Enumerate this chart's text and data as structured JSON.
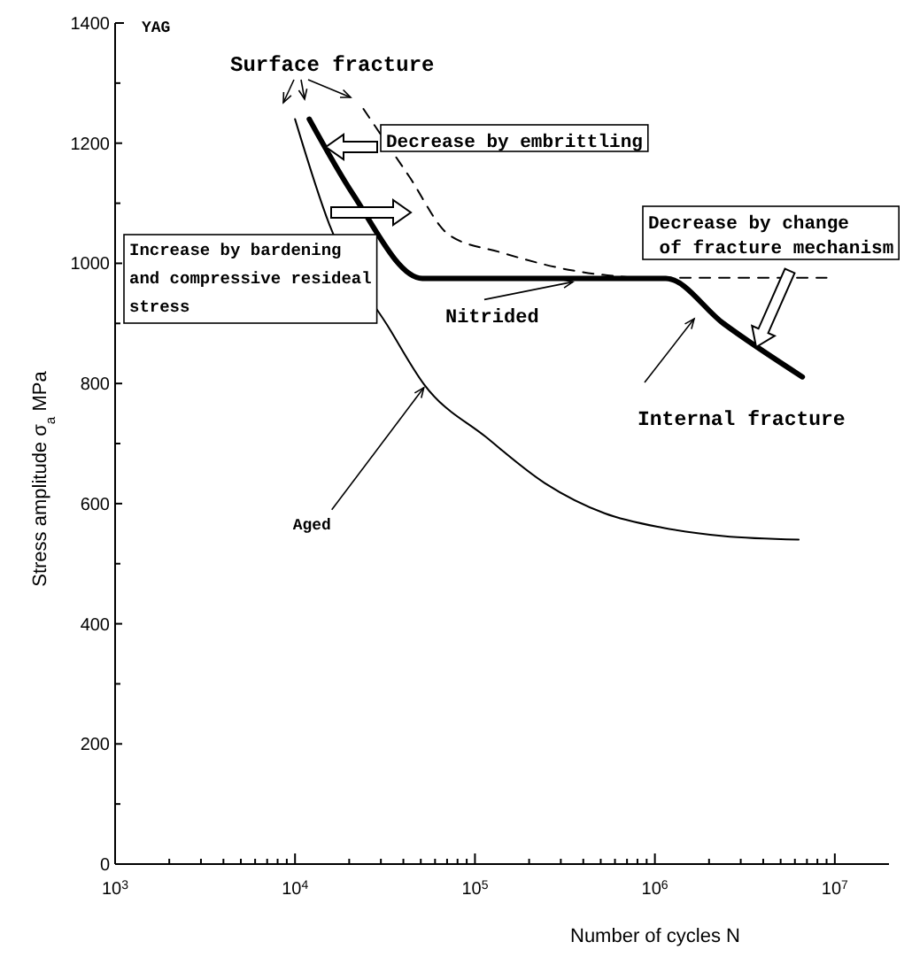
{
  "chart_data": {
    "type": "line",
    "xlabel": "Number of cycles  N",
    "ylabel": "Stress amplitude σ$_{a}$  MPa",
    "log": "x",
    "xlim": [
      1000,
      20000000
    ],
    "ylim": [
      0,
      1400
    ],
    "xticks": [
      {
        "value": 1000,
        "label": "10$^{3}$"
      },
      {
        "value": 2000,
        "label": null
      },
      {
        "value": 3000,
        "label": null
      },
      {
        "value": 4000,
        "label": null
      },
      {
        "value": 5000,
        "label": null
      },
      {
        "value": 6000,
        "label": null
      },
      {
        "value": 7000,
        "label": null
      },
      {
        "value": 8000,
        "label": null
      },
      {
        "value": 9000,
        "label": null
      },
      {
        "value": 10000,
        "label": "10$^{4}$"
      },
      {
        "value": 20000,
        "label": null
      },
      {
        "value": 30000,
        "label": null
      },
      {
        "value": 40000,
        "label": null
      },
      {
        "value": 50000,
        "label": null
      },
      {
        "value": 60000,
        "label": null
      },
      {
        "value": 70000,
        "label": null
      },
      {
        "value": 80000,
        "label": null
      },
      {
        "value": 90000,
        "label": null
      },
      {
        "value": 100000,
        "label": "10$^{5}$"
      },
      {
        "value": 200000,
        "label": null
      },
      {
        "value": 300000,
        "label": null
      },
      {
        "value": 400000,
        "label": null
      },
      {
        "value": 500000,
        "label": null
      },
      {
        "value": 600000,
        "label": null
      },
      {
        "value": 700000,
        "label": null
      },
      {
        "value": 800000,
        "label": null
      },
      {
        "value": 900000,
        "label": null
      },
      {
        "value": 1000000,
        "label": "10$^{6}$"
      },
      {
        "value": 2000000,
        "label": null
      },
      {
        "value": 3000000,
        "label": null
      },
      {
        "value": 4000000,
        "label": null
      },
      {
        "value": 5000000,
        "label": null
      },
      {
        "value": 6000000,
        "label": null
      },
      {
        "value": 7000000,
        "label": null
      },
      {
        "value": 8000000,
        "label": null
      },
      {
        "value": 9000000,
        "label": null
      },
      {
        "value": 10000000,
        "label": "10$^{7}$"
      }
    ],
    "yticks": [
      0,
      {
        "value": 100,
        "label": null
      },
      200,
      {
        "value": 300,
        "label": null
      },
      400,
      {
        "value": 500,
        "label": null
      },
      600,
      {
        "value": 700,
        "label": null
      },
      800,
      {
        "value": 900,
        "label": null
      },
      1000,
      {
        "value": 1100,
        "label": null
      },
      1200,
      {
        "value": 1300,
        "label": null
      },
      1400
    ],
    "series": [
      {
        "color": "#000000",
        "line_style": "solid",
        "x": [
          12000,
          21000,
          51000,
          1150000,
          2400000,
          6600000
        ],
        "values": [
          1240,
          1115,
          975,
          975,
          900,
          811
        ]
      },
      {
        "color": "#000000",
        "line_style": "solid",
        "x": [
          10000,
          15500,
          34000,
          52000,
          115000,
          245000,
          525000,
          1100000,
          2400000,
          6300000
        ],
        "values": [
          1240,
          1065,
          888,
          799,
          711,
          634,
          584,
          560,
          546,
          540
        ]
      },
      {
        "color": "#000000",
        "line_style": "dashed",
        "x": [
          24000,
          43000,
          72000,
          140000,
          350000,
          1000000,
          9000000
        ],
        "values": [
          1257,
          1145,
          1047,
          1018,
          988,
          976,
          976
        ]
      }
    ],
    "annotations": [
      "YAG",
      "Surface fracture",
      "Decrease by embrittling",
      "Increase by bardening\nand compressive resideal\nstress",
      "Internal fracture",
      "Decrease by change\n of fracture mechanism",
      {
        "text": "Nitrided",
        "x": 350000,
        "y": 975
      },
      {
        "text": "Aged",
        "x": 52000,
        "y": 799
      }
    ]
  }
}
